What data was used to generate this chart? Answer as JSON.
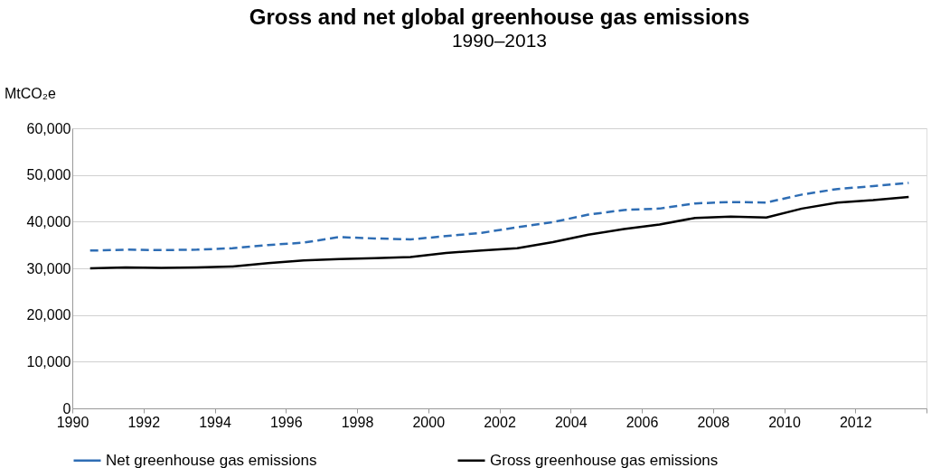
{
  "chart_data": {
    "type": "line",
    "title": "Gross and net global greenhouse gas emissions",
    "subtitle": "1990–2013",
    "ylabel": "MtCO₂e",
    "x": [
      1990.5,
      1991.5,
      1992.5,
      1993.5,
      1994.5,
      1995.5,
      1996.5,
      1997.5,
      1998.5,
      1999.5,
      2000.5,
      2001.5,
      2002.5,
      2003.5,
      2004.5,
      2005.5,
      2006.5,
      2007.5,
      2008.5,
      2009.5,
      2010.5,
      2011.5,
      2012.5,
      2013.5
    ],
    "series": [
      {
        "name": "Net greenhouse gas emissions",
        "color": "#2e6db4",
        "line_style": "dashed",
        "values": [
          33800,
          34000,
          33900,
          34000,
          34300,
          35000,
          35500,
          36700,
          36400,
          36200,
          36900,
          37600,
          38800,
          39900,
          41500,
          42500,
          42800,
          43900,
          44200,
          44100,
          45800,
          47000,
          47600,
          48300
        ]
      },
      {
        "name": "Gross greenhouse gas emissions",
        "color": "#000000",
        "line_style": "solid",
        "values": [
          30000,
          30200,
          30100,
          30200,
          30400,
          31100,
          31700,
          32000,
          32200,
          32400,
          33300,
          33800,
          34300,
          35600,
          37200,
          38400,
          39400,
          40800,
          41100,
          40900,
          42800,
          44100,
          44600,
          45300
        ]
      }
    ],
    "xlim": [
      1990,
      2014
    ],
    "xticks": [
      1990,
      1992,
      1994,
      1996,
      1998,
      2000,
      2002,
      2004,
      2006,
      2008,
      2010,
      2012,
      {
        "value": 2014,
        "label": null
      }
    ],
    "ylim": [
      0,
      60000
    ],
    "yticks": [
      {
        "value": 0,
        "label": "0"
      },
      {
        "value": 10000,
        "label": "10,000"
      },
      {
        "value": 20000,
        "label": "20,000"
      },
      {
        "value": 30000,
        "label": "30,000"
      },
      {
        "value": 40000,
        "label": "40,000"
      },
      {
        "value": 50000,
        "label": "50,000"
      },
      {
        "value": 60000,
        "label": "60,000"
      }
    ],
    "grid": "y",
    "legend": "bottom",
    "marker": "none"
  }
}
